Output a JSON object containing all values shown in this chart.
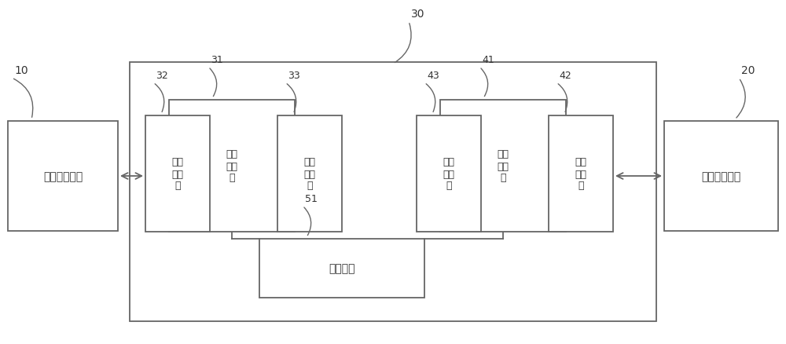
{
  "bg_color": "#ffffff",
  "line_color": "#666666",
  "box_edge_color": "#666666",
  "font_color": "#333333",
  "label_10": "10",
  "label_20": "20",
  "label_30": "30",
  "label_31": "31",
  "label_32": "32",
  "label_33": "33",
  "label_41": "41",
  "label_42": "42",
  "label_43": "43",
  "label_51": "51",
  "text_10": "第一信号装置",
  "text_20": "第二信号装置",
  "text_31": "第一\n对接\n部",
  "text_32": "第一\n组接\n口",
  "text_33": "第一\n对接\n部",
  "text_41": "第二\n对接\n部",
  "text_42": "第二\n组接\n口",
  "text_43": "第二\n对接\n部",
  "text_51": "控制单元",
  "fig_width": 10.0,
  "fig_height": 4.39,
  "dpi": 100
}
